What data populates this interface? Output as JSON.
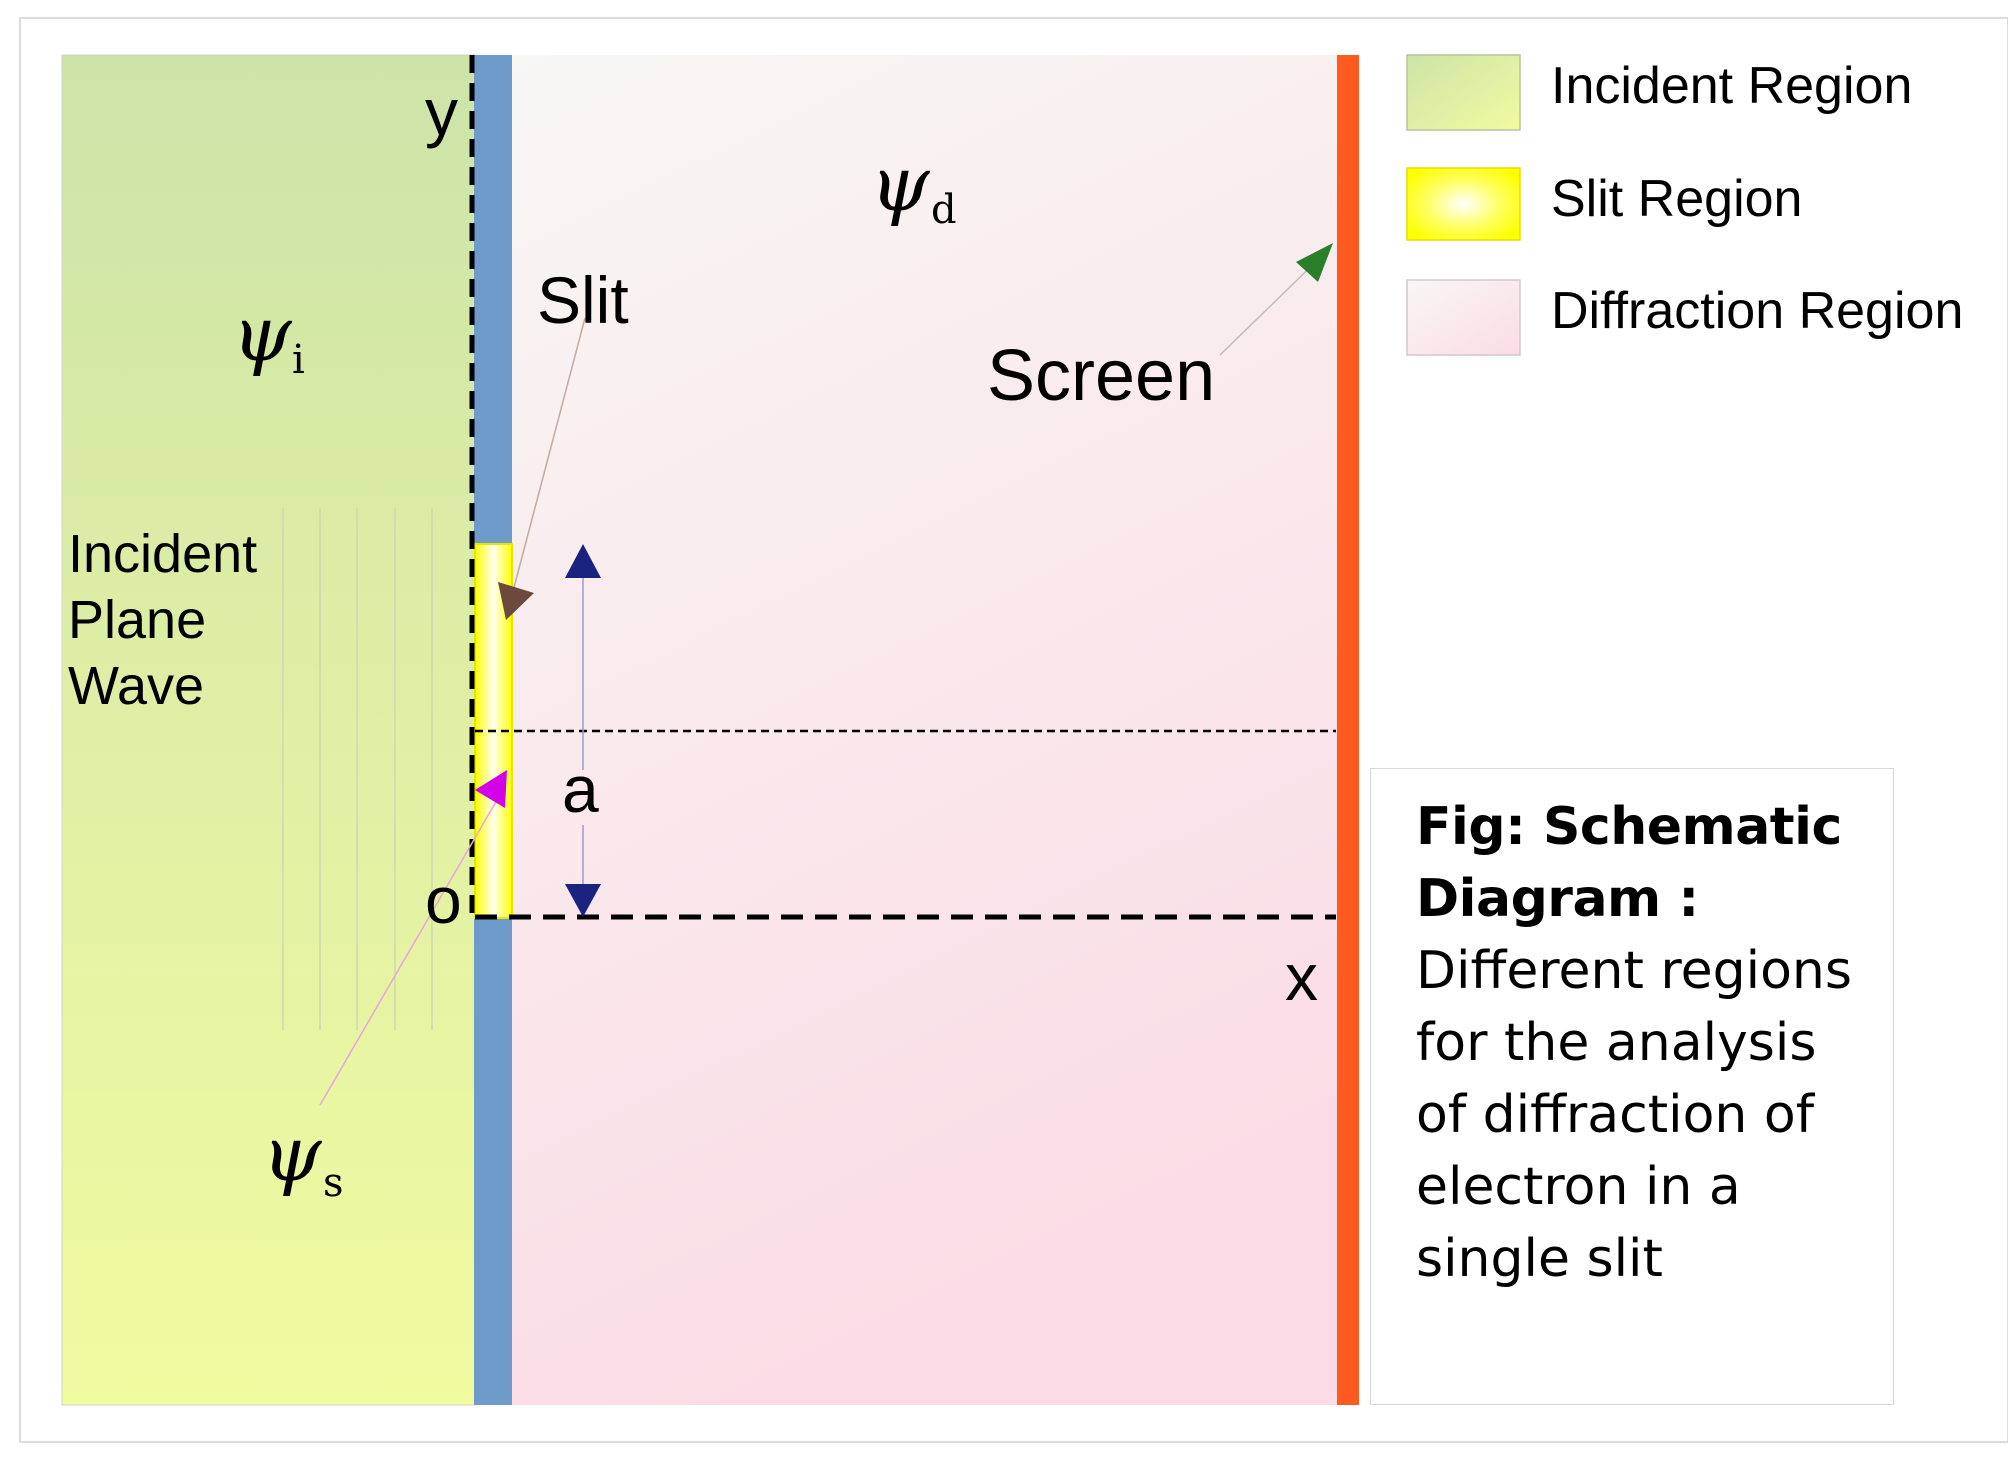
{
  "regions": {
    "incident": {
      "name": "Incident Region",
      "color_top": "#cde3a8",
      "color_bottom": "#f1fba0"
    },
    "slit": {
      "name": "Slit Region",
      "color": "#ffff00"
    },
    "diffraction": {
      "name": "Diffraction Region",
      "color_top": "#f8f7f4",
      "color_bottom": "#fbdce6"
    }
  },
  "colors": {
    "barrier": "#6f9bcb",
    "screen": "#ff5a20",
    "screen_arrow": "#2a7f2a",
    "slit_arrow": "#6b4a3d",
    "psi_s_arrow": "#d400e6",
    "a_arrow": "#1a237e"
  },
  "labels": {
    "axis_y": "y",
    "axis_x": "x",
    "origin": "o",
    "slit": "Slit",
    "screen": "Screen",
    "width": "a",
    "incident_wave": [
      "Incident",
      "Plane",
      "Wave"
    ],
    "psi": "ψ",
    "psi_i_sub": "i",
    "psi_d_sub": "d",
    "psi_s_sub": "s"
  },
  "legend": [
    {
      "label": "Incident Region"
    },
    {
      "label": "Slit Region"
    },
    {
      "label": "Diffraction Region"
    }
  ],
  "caption": {
    "title": "Fig: Schematic Diagram :",
    "body": "Different regions for the analysis of diffraction of electron in a single slit"
  }
}
